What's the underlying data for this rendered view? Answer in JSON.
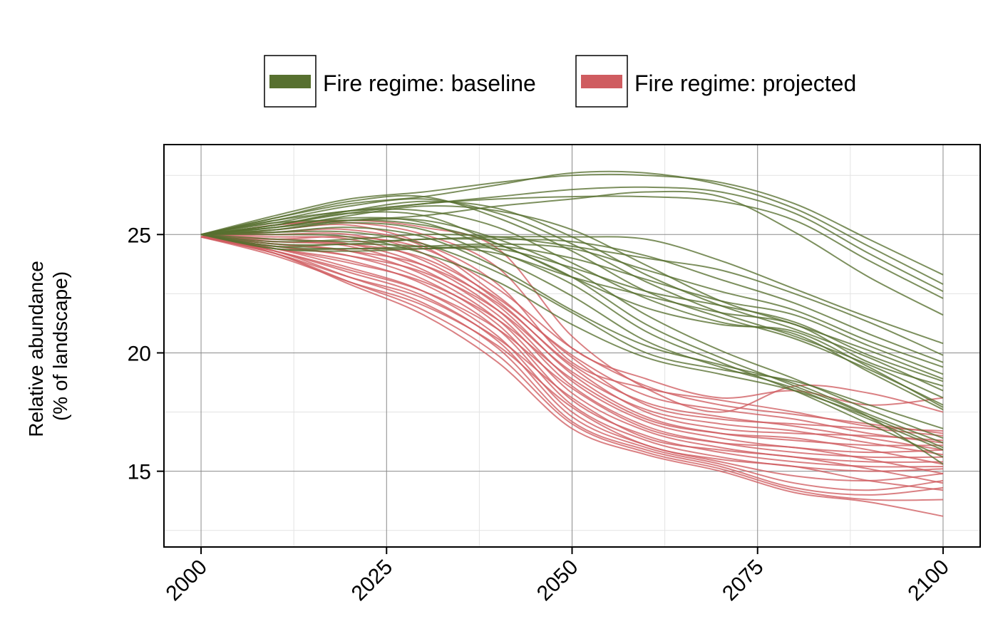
{
  "chart_data": {
    "type": "line",
    "title": "",
    "xlabel": "",
    "ylabel_lines": [
      "Relative abundance",
      "(% of landscape)"
    ],
    "xlim": [
      1995,
      2105
    ],
    "ylim": [
      11.8,
      28.8
    ],
    "xticks": [
      2000,
      2025,
      2050,
      2075,
      2100
    ],
    "yticks": [
      15,
      20,
      25
    ],
    "x_minor_ticks": [
      2012.5,
      2037.5,
      2062.5,
      2087.5
    ],
    "y_minor_ticks": [
      12.5,
      17.5,
      22.5,
      27.5
    ],
    "grid": true,
    "legend_position": "top",
    "legend": [
      {
        "label": "Fire regime: baseline",
        "color": "#57702f"
      },
      {
        "label": "Fire regime: projected",
        "color": "#cf5c60"
      }
    ],
    "x": [
      2000,
      2010,
      2020,
      2030,
      2040,
      2050,
      2060,
      2070,
      2080,
      2090,
      2100
    ],
    "series": [
      {
        "group": "baseline",
        "values": [
          25.0,
          25.8,
          26.5,
          26.8,
          27.2,
          27.5,
          27.5,
          27.2,
          26.3,
          24.8,
          23.3
        ]
      },
      {
        "group": "baseline",
        "values": [
          25.0,
          25.7,
          26.3,
          26.6,
          27.1,
          27.6,
          27.6,
          27.1,
          26.1,
          24.5,
          22.9
        ]
      },
      {
        "group": "baseline",
        "values": [
          25.0,
          25.6,
          26.0,
          26.3,
          26.6,
          26.9,
          27.0,
          26.8,
          25.9,
          24.2,
          22.6
        ]
      },
      {
        "group": "baseline",
        "values": [
          25.0,
          25.4,
          25.9,
          26.3,
          26.5,
          26.6,
          26.6,
          26.4,
          25.6,
          23.9,
          22.3
        ]
      },
      {
        "group": "baseline",
        "values": [
          25.0,
          25.3,
          25.6,
          25.8,
          26.2,
          26.5,
          26.8,
          26.6,
          25.1,
          23.2,
          21.6
        ]
      },
      {
        "group": "baseline",
        "values": [
          25.0,
          24.8,
          24.7,
          24.8,
          24.9,
          24.9,
          24.8,
          23.9,
          22.7,
          21.5,
          20.4
        ]
      },
      {
        "group": "baseline",
        "values": [
          25.0,
          24.7,
          24.8,
          25.0,
          24.9,
          24.5,
          24.0,
          23.5,
          22.5,
          21.3,
          19.9
        ]
      },
      {
        "group": "baseline",
        "values": [
          25.0,
          24.6,
          24.6,
          24.8,
          24.8,
          24.7,
          24.1,
          23.1,
          22.1,
          20.8,
          19.6
        ]
      },
      {
        "group": "baseline",
        "values": [
          25.0,
          24.5,
          24.4,
          24.5,
          24.6,
          24.4,
          23.5,
          22.6,
          21.8,
          20.5,
          19.4
        ]
      },
      {
        "group": "baseline",
        "values": [
          25.0,
          24.4,
          24.3,
          24.4,
          24.5,
          24.0,
          23.1,
          22.2,
          21.6,
          20.3,
          19.1
        ]
      },
      {
        "group": "baseline",
        "values": [
          25.0,
          24.4,
          24.4,
          24.4,
          24.4,
          23.6,
          22.6,
          22.0,
          21.3,
          19.9,
          18.8
        ]
      },
      {
        "group": "baseline",
        "values": [
          25.0,
          24.5,
          24.6,
          24.5,
          24.2,
          23.2,
          22.4,
          21.7,
          21.2,
          19.6,
          18.6
        ]
      },
      {
        "group": "baseline",
        "values": [
          25.0,
          25.3,
          25.8,
          26.2,
          26.0,
          25.2,
          23.7,
          22.2,
          21.2,
          20.1,
          18.9
        ]
      },
      {
        "group": "baseline",
        "values": [
          25.0,
          25.4,
          26.0,
          26.4,
          26.1,
          24.9,
          23.3,
          22.0,
          21.0,
          19.8,
          18.4
        ]
      },
      {
        "group": "baseline",
        "values": [
          25.0,
          25.6,
          26.2,
          26.5,
          25.9,
          24.6,
          23.0,
          21.7,
          20.7,
          19.5,
          18.1
        ]
      },
      {
        "group": "baseline",
        "values": [
          25.0,
          25.7,
          26.4,
          26.6,
          25.7,
          24.3,
          22.6,
          21.5,
          20.6,
          19.3,
          17.8
        ]
      },
      {
        "group": "baseline",
        "values": [
          25.0,
          25.5,
          26.0,
          26.0,
          25.3,
          23.8,
          22.3,
          21.3,
          20.8,
          19.2,
          17.6
        ]
      },
      {
        "group": "baseline",
        "values": [
          25.0,
          25.2,
          25.6,
          25.4,
          24.6,
          23.2,
          21.9,
          21.2,
          20.9,
          19.4,
          17.7
        ]
      },
      {
        "group": "baseline",
        "values": [
          25.0,
          25.1,
          25.3,
          24.9,
          23.6,
          21.8,
          20.3,
          19.5,
          18.7,
          17.4,
          16.2
        ]
      },
      {
        "group": "baseline",
        "values": [
          25.0,
          25.2,
          25.5,
          25.2,
          24.0,
          22.4,
          20.5,
          19.4,
          18.5,
          17.2,
          15.9
        ]
      },
      {
        "group": "baseline",
        "values": [
          25.0,
          25.3,
          25.7,
          25.5,
          24.3,
          22.9,
          20.9,
          19.6,
          18.4,
          17.0,
          15.6
        ]
      },
      {
        "group": "baseline",
        "values": [
          25.0,
          25.4,
          25.9,
          25.8,
          24.6,
          23.2,
          21.2,
          19.8,
          18.6,
          17.3,
          15.3
        ]
      },
      {
        "group": "baseline",
        "values": [
          25.0,
          25.5,
          25.6,
          25.6,
          24.8,
          23.5,
          21.6,
          20.1,
          18.9,
          17.6,
          16.4
        ]
      },
      {
        "group": "baseline",
        "values": [
          25.0,
          25.1,
          25.1,
          24.6,
          23.4,
          21.7,
          20.0,
          19.3,
          18.8,
          17.8,
          16.8
        ]
      },
      {
        "group": "baseline",
        "values": [
          25.0,
          25.0,
          24.9,
          24.2,
          23.0,
          21.2,
          19.8,
          19.1,
          18.4,
          17.3,
          16.0
        ]
      },
      {
        "group": "projected",
        "values": [
          24.9,
          25.4,
          25.6,
          25.3,
          24.4,
          20.7,
          18.5,
          17.5,
          18.6,
          18.3,
          17.5
        ]
      },
      {
        "group": "projected",
        "values": [
          24.9,
          25.4,
          25.5,
          25.0,
          23.6,
          20.2,
          18.9,
          18.1,
          18.4,
          17.8,
          18.1
        ]
      },
      {
        "group": "projected",
        "values": [
          24.9,
          25.2,
          25.4,
          24.6,
          22.9,
          19.6,
          18.5,
          18.0,
          17.5,
          16.9,
          16.7
        ]
      },
      {
        "group": "projected",
        "values": [
          24.9,
          25.1,
          25.2,
          24.5,
          22.4,
          19.8,
          17.8,
          17.2,
          17.0,
          16.8,
          16.5
        ]
      },
      {
        "group": "projected",
        "values": [
          24.9,
          25.0,
          25.0,
          24.2,
          22.2,
          19.4,
          17.5,
          16.8,
          16.6,
          16.5,
          16.3
        ]
      },
      {
        "group": "projected",
        "values": [
          24.9,
          24.9,
          24.8,
          23.9,
          22.0,
          19.1,
          17.3,
          16.6,
          16.3,
          16.1,
          16.1
        ]
      },
      {
        "group": "projected",
        "values": [
          24.9,
          24.8,
          24.6,
          23.7,
          21.8,
          18.8,
          17.1,
          16.4,
          16.0,
          15.8,
          15.9
        ]
      },
      {
        "group": "projected",
        "values": [
          24.9,
          24.7,
          24.5,
          23.5,
          21.6,
          18.6,
          16.9,
          16.2,
          15.8,
          15.6,
          15.6
        ]
      },
      {
        "group": "projected",
        "values": [
          24.9,
          24.6,
          24.3,
          23.3,
          21.4,
          18.3,
          16.7,
          16.0,
          15.6,
          15.4,
          15.4
        ]
      },
      {
        "group": "projected",
        "values": [
          24.9,
          24.5,
          24.1,
          23.1,
          21.2,
          18.0,
          16.5,
          15.8,
          15.4,
          15.2,
          15.2
        ]
      },
      {
        "group": "projected",
        "values": [
          24.9,
          24.4,
          23.9,
          22.9,
          21.0,
          17.8,
          16.3,
          15.6,
          15.2,
          15.0,
          15.1
        ]
      },
      {
        "group": "projected",
        "values": [
          24.9,
          24.4,
          23.6,
          22.6,
          20.7,
          17.5,
          16.1,
          15.4,
          14.8,
          14.6,
          14.9
        ]
      },
      {
        "group": "projected",
        "values": [
          24.9,
          24.3,
          23.4,
          22.4,
          20.5,
          17.3,
          16.0,
          15.3,
          14.5,
          14.2,
          14.6
        ]
      },
      {
        "group": "projected",
        "values": [
          24.9,
          24.3,
          23.2,
          22.1,
          20.2,
          17.1,
          15.9,
          15.2,
          14.3,
          14.0,
          14.3
        ]
      },
      {
        "group": "projected",
        "values": [
          24.9,
          24.2,
          23.0,
          21.8,
          19.9,
          17.0,
          15.8,
          15.1,
          14.2,
          13.8,
          13.8
        ]
      },
      {
        "group": "projected",
        "values": [
          24.9,
          24.2,
          22.9,
          21.6,
          19.6,
          16.8,
          15.7,
          15.0,
          14.1,
          13.7,
          13.1
        ]
      },
      {
        "group": "projected",
        "values": [
          24.9,
          24.8,
          24.9,
          24.4,
          22.7,
          20.2,
          18.6,
          17.8,
          17.4,
          17.0,
          16.6
        ]
      },
      {
        "group": "projected",
        "values": [
          24.9,
          24.7,
          24.6,
          24.0,
          22.3,
          19.9,
          18.2,
          17.6,
          17.2,
          16.6,
          16.2
        ]
      },
      {
        "group": "projected",
        "values": [
          24.9,
          24.6,
          24.3,
          23.7,
          22.1,
          19.5,
          17.9,
          17.3,
          16.9,
          16.4,
          15.9
        ]
      },
      {
        "group": "projected",
        "values": [
          24.9,
          24.5,
          24.1,
          23.4,
          21.8,
          19.2,
          17.6,
          17.0,
          16.7,
          16.2,
          15.7
        ]
      },
      {
        "group": "projected",
        "values": [
          24.9,
          24.4,
          23.8,
          23.0,
          21.4,
          18.9,
          17.2,
          16.6,
          16.4,
          15.9,
          15.3
        ]
      },
      {
        "group": "projected",
        "values": [
          24.9,
          24.3,
          23.5,
          22.6,
          21.0,
          18.5,
          16.8,
          16.2,
          16.0,
          15.5,
          14.9
        ]
      },
      {
        "group": "projected",
        "values": [
          24.9,
          24.2,
          23.2,
          22.3,
          20.6,
          18.1,
          16.4,
          15.9,
          15.6,
          15.1,
          14.5
        ]
      },
      {
        "group": "projected",
        "values": [
          24.9,
          24.1,
          23.0,
          22.0,
          20.3,
          17.7,
          16.1,
          15.5,
          15.2,
          14.6,
          14.2
        ]
      }
    ]
  }
}
